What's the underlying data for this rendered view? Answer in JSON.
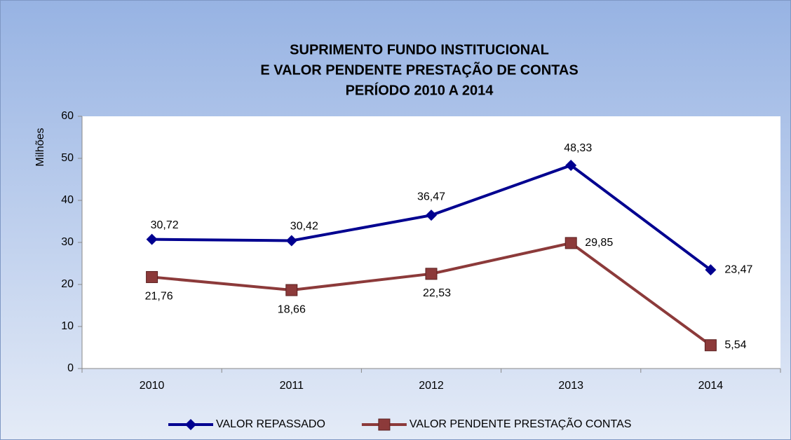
{
  "chart_data": {
    "type": "line",
    "title": [
      "SUPRIMENTO FUNDO INSTITUCIONAL",
      "E  VALOR PENDENTE PRESTAÇÃO DE CONTAS",
      "PERÍODO 2010 A 2014"
    ],
    "y_label": "Milhões",
    "categories": [
      "2010",
      "2011",
      "2012",
      "2013",
      "2014"
    ],
    "series": [
      {
        "name": "VALOR REPASSADO",
        "color": "#000090",
        "marker": "diamond",
        "values": [
          30.72,
          30.42,
          36.47,
          48.33,
          23.47
        ],
        "value_labels": [
          "30,72",
          "30,42",
          "36,47",
          "48,33",
          "23,47"
        ]
      },
      {
        "name": "VALOR PENDENTE PRESTAÇÃO CONTAS",
        "color": "#8c3a3a",
        "marker": "square",
        "values": [
          21.76,
          18.66,
          22.53,
          29.85,
          5.54
        ],
        "value_labels": [
          "21,76",
          "18,66",
          "22,53",
          "29,85",
          "5,54"
        ]
      }
    ],
    "ylim": [
      0,
      60
    ],
    "yticks": [
      0,
      10,
      20,
      30,
      40,
      50,
      60
    ],
    "grid": false,
    "legend": "bottom"
  }
}
